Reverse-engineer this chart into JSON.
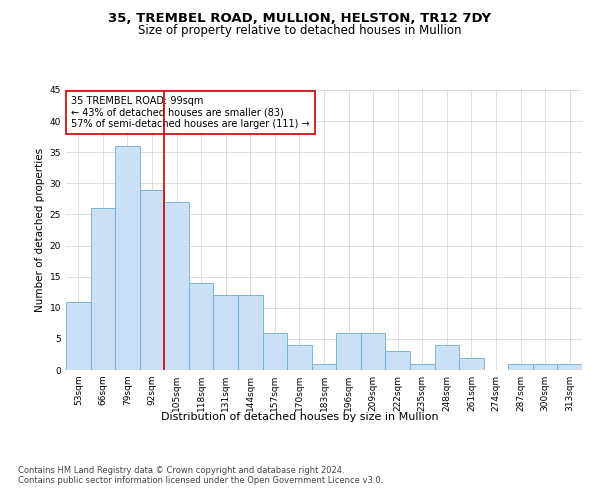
{
  "title1": "35, TREMBEL ROAD, MULLION, HELSTON, TR12 7DY",
  "title2": "Size of property relative to detached houses in Mullion",
  "xlabel": "Distribution of detached houses by size in Mullion",
  "ylabel": "Number of detached properties",
  "categories": [
    "53sqm",
    "66sqm",
    "79sqm",
    "92sqm",
    "105sqm",
    "118sqm",
    "131sqm",
    "144sqm",
    "157sqm",
    "170sqm",
    "183sqm",
    "196sqm",
    "209sqm",
    "222sqm",
    "235sqm",
    "248sqm",
    "261sqm",
    "274sqm",
    "287sqm",
    "300sqm",
    "313sqm"
  ],
  "values": [
    11,
    26,
    36,
    29,
    27,
    14,
    12,
    12,
    6,
    4,
    1,
    6,
    6,
    3,
    1,
    4,
    2,
    0,
    1,
    1,
    1
  ],
  "bar_color": "#cce0f5",
  "bar_edge_color": "#6aaed6",
  "red_line_x": 3.5,
  "red_line_color": "#cc0000",
  "ylim": [
    0,
    45
  ],
  "yticks": [
    0,
    5,
    10,
    15,
    20,
    25,
    30,
    35,
    40,
    45
  ],
  "annotation_title": "35 TREMBEL ROAD: 99sqm",
  "annotation_line1": "← 43% of detached houses are smaller (83)",
  "annotation_line2": "57% of semi-detached houses are larger (111) →",
  "annotation_box_color": "#ffffff",
  "annotation_box_edge": "#cc0000",
  "footnote1": "Contains HM Land Registry data © Crown copyright and database right 2024.",
  "footnote2": "Contains public sector information licensed under the Open Government Licence v3.0.",
  "bg_color": "#ffffff",
  "grid_color": "#d0d0d0",
  "title1_fontsize": 9.5,
  "title2_fontsize": 8.5,
  "xlabel_fontsize": 8,
  "ylabel_fontsize": 7.5,
  "tick_fontsize": 6.5,
  "annotation_fontsize": 7,
  "footnote_fontsize": 6
}
